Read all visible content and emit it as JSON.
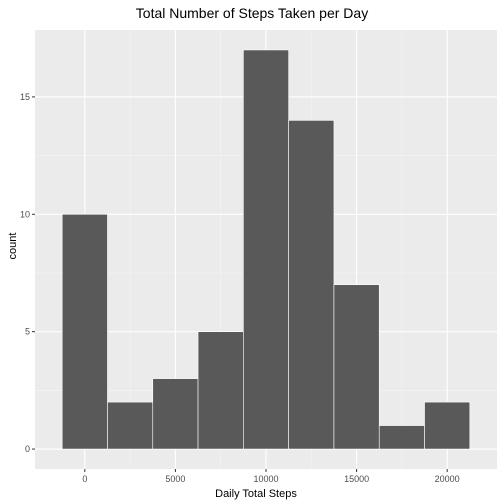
{
  "chart_data": {
    "type": "bar",
    "title": "Total Number of Steps Taken per Day",
    "xlabel": "Daily Total Steps",
    "ylabel": "count",
    "bin_width": 2500,
    "bins": [
      {
        "start": -1250,
        "end": 1250,
        "count": 10
      },
      {
        "start": 1250,
        "end": 3750,
        "count": 2
      },
      {
        "start": 3750,
        "end": 6250,
        "count": 3
      },
      {
        "start": 6250,
        "end": 8750,
        "count": 5
      },
      {
        "start": 8750,
        "end": 11250,
        "count": 17
      },
      {
        "start": 11250,
        "end": 13750,
        "count": 14
      },
      {
        "start": 13750,
        "end": 16250,
        "count": 7
      },
      {
        "start": 16250,
        "end": 18750,
        "count": 1
      },
      {
        "start": 18750,
        "end": 21250,
        "count": 2
      }
    ],
    "xlim": [
      -2750,
      22750
    ],
    "ylim": [
      -0.85,
      17.85
    ],
    "x_ticks": [
      0,
      5000,
      10000,
      15000,
      20000
    ],
    "x_tick_labels": [
      "0",
      "5000",
      "10000",
      "15000",
      "20000"
    ],
    "y_ticks": [
      0,
      5,
      10,
      15
    ],
    "y_tick_labels": [
      "0",
      "5",
      "10",
      "15"
    ],
    "grid": true,
    "colors": {
      "bar_fill": "#595959",
      "bar_outline": "#ffffff",
      "panel_background": "#ebebeb",
      "grid_major": "#ffffff",
      "grid_minor": "#f5f5f5",
      "tick_label": "#4d4d4d"
    }
  }
}
